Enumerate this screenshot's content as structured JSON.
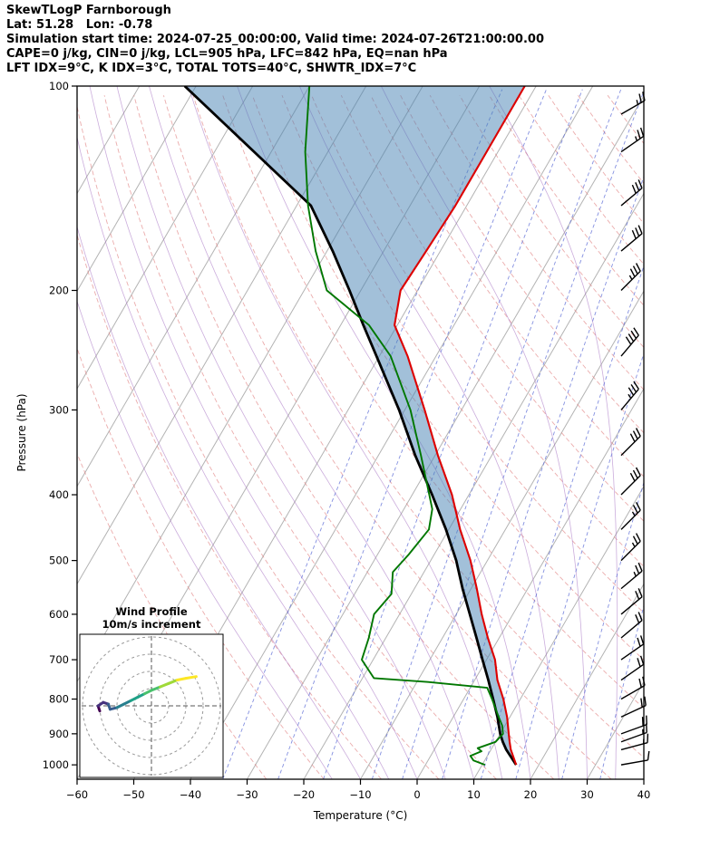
{
  "header": {
    "title": "SkewTLogP Farnborough",
    "location": "Lat: 51.28   Lon: -0.78",
    "times": "Simulation start time: 2024-07-25_00:00:00, Valid time: 2024-07-26T21:00:00.00",
    "indices_line1": "CAPE=0 j/kg, CIN=0 j/kg, LCL=905 hPa, LFC=842 hPa, EQ=nan hPa",
    "indices_line2": "LFT IDX=9°C, K IDX=3°C, TOTAL TOTS=40°C, SHWTR_IDX=7°C"
  },
  "chart_data": {
    "type": "skewt-logp",
    "xlabel": "Temperature (°C)",
    "ylabel": "Pressure (hPa)",
    "xlim": [
      -60,
      40
    ],
    "pressure_lim": [
      100,
      1050
    ],
    "x_ticks": [
      -60,
      -50,
      -40,
      -30,
      -20,
      -10,
      0,
      10,
      20,
      30,
      40
    ],
    "pressure_ticks": [
      100,
      200,
      300,
      400,
      500,
      600,
      700,
      800,
      900,
      1000
    ],
    "skew_slope": 0.58,
    "colors": {
      "temperature": "#dd0000",
      "dewpoint": "#007700",
      "parcel": "#000000",
      "cin_shade": "rgba(70,130,180,0.5)",
      "isotherm": "#b3b3b3",
      "dry_adiabat": "#e08080",
      "moist_adiabat": "#a06ac0",
      "mixing_ratio": "#5b6bd5",
      "barb": "#000000"
    },
    "background": {
      "isotherms_c": {
        "start": -120,
        "end": 40,
        "step": 10
      },
      "dry_adiabats_c": {
        "start": -30,
        "end": 180,
        "step": 10
      },
      "moist_adiabats_c": {
        "start": -15,
        "end": 35,
        "step": 5
      },
      "mixing_ratios_gkg": [
        0.2,
        0.5,
        1,
        2,
        3,
        5,
        8,
        12,
        20,
        30
      ]
    },
    "temperature_profile": {
      "pressure_hpa": [
        1000,
        950,
        925,
        900,
        850,
        800,
        750,
        700,
        650,
        600,
        550,
        500,
        450,
        400,
        350,
        300,
        250,
        225,
        200,
        175,
        150,
        125,
        100
      ],
      "temp_c": [
        16,
        13.5,
        12.5,
        11.5,
        9.5,
        7,
        4,
        1.5,
        -2,
        -5.5,
        -9,
        -13,
        -18,
        -23,
        -29.5,
        -36.5,
        -45,
        -50.5,
        -53,
        -52.5,
        -52,
        -52,
        -52
      ]
    },
    "dewpoint_profile": {
      "pressure_hpa": [
        1000,
        985,
        970,
        955,
        945,
        925,
        900,
        875,
        850,
        800,
        770,
        755,
        745,
        700,
        650,
        600,
        560,
        520,
        490,
        450,
        420,
        400,
        350,
        300,
        250,
        225,
        200,
        175,
        150,
        125,
        100
      ],
      "temp_c": [
        10.5,
        8,
        7,
        8.5,
        7.5,
        10,
        10.5,
        9.5,
        8,
        5,
        3,
        -8,
        -18,
        -22,
        -23,
        -24.5,
        -23.5,
        -25.5,
        -24.5,
        -23.5,
        -25,
        -27,
        -32.5,
        -39,
        -48,
        -55,
        -66,
        -72,
        -78,
        -84,
        -90
      ]
    },
    "parcel_profile": {
      "pressure_hpa": [
        1000,
        950,
        925,
        900,
        850,
        800,
        750,
        700,
        650,
        600,
        550,
        500,
        450,
        400,
        350,
        300,
        250,
        225,
        200,
        175,
        150,
        125,
        100
      ],
      "temp_c": [
        16,
        12.7,
        11.3,
        10,
        7.8,
        5.2,
        2.4,
        -0.7,
        -4,
        -7.6,
        -11.5,
        -15.5,
        -20.5,
        -26.5,
        -33.5,
        -41,
        -50.5,
        -56,
        -62,
        -69,
        -77.5,
        -93,
        -112
      ]
    },
    "wind_barbs": {
      "pressure_hpa": [
        1000,
        950,
        925,
        900,
        850,
        800,
        750,
        700,
        650,
        600,
        550,
        500,
        450,
        400,
        350,
        300,
        250,
        200,
        175,
        150,
        125,
        110
      ],
      "speed_kt": [
        10,
        15,
        15,
        20,
        20,
        20,
        20,
        20,
        20,
        20,
        25,
        25,
        25,
        30,
        30,
        35,
        40,
        35,
        30,
        30,
        25,
        25
      ],
      "direction_deg": [
        80,
        75,
        70,
        70,
        65,
        60,
        55,
        55,
        50,
        50,
        50,
        45,
        45,
        45,
        45,
        40,
        40,
        45,
        50,
        50,
        55,
        60
      ]
    },
    "hodograph": {
      "title": "Wind Profile",
      "subtitle": "10m/s increment",
      "ring_spacing_ms": 10,
      "rings_ms": [
        10,
        20,
        30,
        40
      ],
      "u_ms": [
        -30,
        -31,
        -28,
        -25,
        -24,
        -20,
        -16,
        -12,
        -8,
        -4,
        0,
        5,
        10,
        15,
        20,
        26
      ],
      "v_ms": [
        -3,
        0,
        2,
        1,
        -2,
        -1,
        1,
        3,
        5,
        7,
        9,
        11,
        13,
        15,
        16,
        17
      ],
      "colormap": [
        "#440154",
        "#46327e",
        "#365c8d",
        "#277f8e",
        "#1fa187",
        "#4ac16d",
        "#a0da39",
        "#fde725"
      ]
    }
  }
}
